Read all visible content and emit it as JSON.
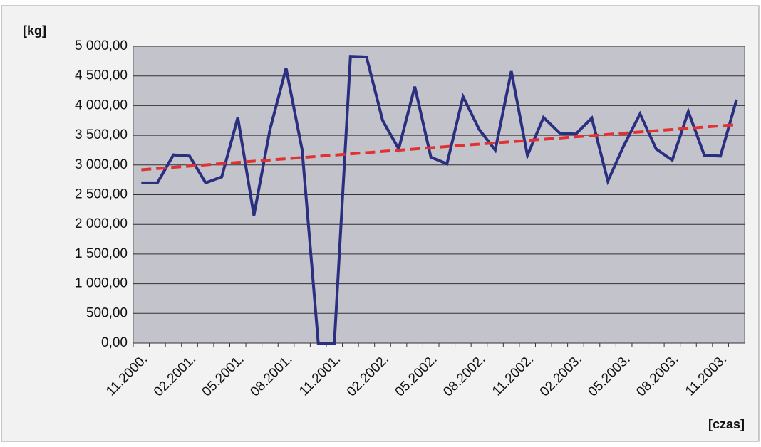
{
  "chart_data": {
    "type": "line",
    "y_label": "[kg]",
    "x_label": "[czas]",
    "categories": [
      "11.2000.",
      null,
      null,
      "02.2001.",
      null,
      null,
      "05.2001.",
      null,
      null,
      "08.2001.",
      null,
      null,
      "11.2001.",
      null,
      null,
      "02.2002.",
      null,
      null,
      "05.2002.",
      null,
      null,
      "08.2002.",
      null,
      null,
      "11.2002.",
      null,
      null,
      "02.2003.",
      null,
      null,
      "05.2003.",
      null,
      null,
      "08.2003.",
      null,
      null,
      "11.2003.",
      null
    ],
    "series": [
      {
        "color": "#2b2f80",
        "values": [
          2700,
          2700,
          3170,
          3150,
          2700,
          2800,
          3800,
          2150,
          3600,
          4630,
          3250,
          0,
          0,
          4830,
          4820,
          3750,
          3270,
          4320,
          3130,
          3020,
          4150,
          3600,
          3250,
          4580,
          3160,
          3800,
          3540,
          3520,
          3790,
          2730,
          3330,
          3860,
          3270,
          3080,
          3900,
          3160,
          3150,
          4100
        ]
      }
    ],
    "trendline": {
      "color": "#e03232",
      "values": [
        2920,
        3680
      ]
    },
    "ylim": [
      0,
      5000
    ],
    "yticks": [
      {
        "value": 0,
        "label": "0,00"
      },
      {
        "value": 500,
        "label": "500,00"
      },
      {
        "value": 1000,
        "label": "1 000,00"
      },
      {
        "value": 1500,
        "label": "1 500,00"
      },
      {
        "value": 2000,
        "label": "2 000,00"
      },
      {
        "value": 2500,
        "label": "2 500,00"
      },
      {
        "value": 3000,
        "label": "3 000,00"
      },
      {
        "value": 3500,
        "label": "3 500,00"
      },
      {
        "value": 4000,
        "label": "4 000,00"
      },
      {
        "value": 4500,
        "label": "4 500,00"
      },
      {
        "value": 5000,
        "label": "5 000,00"
      }
    ],
    "grid": true
  }
}
